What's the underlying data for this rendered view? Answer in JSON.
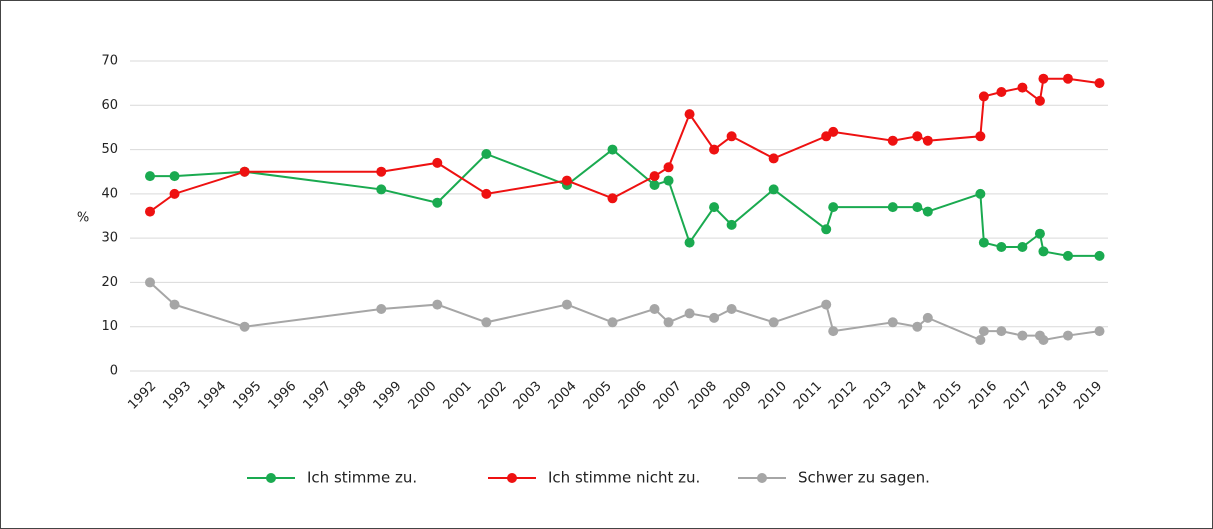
{
  "chart_data": {
    "type": "line",
    "y_label": "%",
    "x": [
      1992.0,
      1992.7,
      1994.7,
      1998.6,
      2000.2,
      2001.6,
      2003.9,
      2005.2,
      2006.4,
      2006.8,
      2007.4,
      2008.1,
      2008.6,
      2009.8,
      2011.3,
      2011.5,
      2013.2,
      2013.9,
      2014.2,
      2015.7,
      2015.8,
      2016.3,
      2016.9,
      2017.4,
      2017.5,
      2018.2,
      2019.1
    ],
    "series": [
      {
        "name": "Ich stimme zu.",
        "color": "#1aaa50",
        "values": [
          44,
          44,
          45,
          41,
          38,
          49,
          42,
          50,
          42,
          43,
          29,
          37,
          33,
          41,
          32,
          37,
          37,
          37,
          36,
          40,
          29,
          28,
          28,
          31,
          27,
          26,
          26
        ]
      },
      {
        "name": "Ich stimme nicht zu.",
        "color": "#ee1111",
        "values": [
          36,
          40,
          45,
          45,
          47,
          40,
          43,
          39,
          44,
          46,
          58,
          50,
          53,
          48,
          53,
          54,
          52,
          53,
          52,
          53,
          62,
          63,
          64,
          61,
          66,
          66,
          65
        ]
      },
      {
        "name": "Schwer zu sagen.",
        "color": "#a6a6a6",
        "values": [
          20,
          15,
          10,
          14,
          15,
          11,
          15,
          11,
          14,
          11,
          13,
          12,
          14,
          11,
          15,
          9,
          11,
          10,
          12,
          7,
          9,
          9,
          8,
          8,
          7,
          8,
          9
        ]
      }
    ],
    "xlim": [
      1991.8,
      2019.2
    ],
    "xticks": [
      1992,
      1993,
      1994,
      1995,
      1996,
      1997,
      1998,
      1999,
      2000,
      2001,
      2002,
      2003,
      2004,
      2005,
      2006,
      2007,
      2008,
      2009,
      2010,
      2011,
      2012,
      2013,
      2014,
      2015,
      2016,
      2017,
      2018,
      2019
    ],
    "ylim": [
      0,
      70
    ],
    "yticks": [
      0,
      10,
      20,
      30,
      40,
      50,
      60,
      70
    ],
    "grid": true,
    "legend": "bottom"
  }
}
